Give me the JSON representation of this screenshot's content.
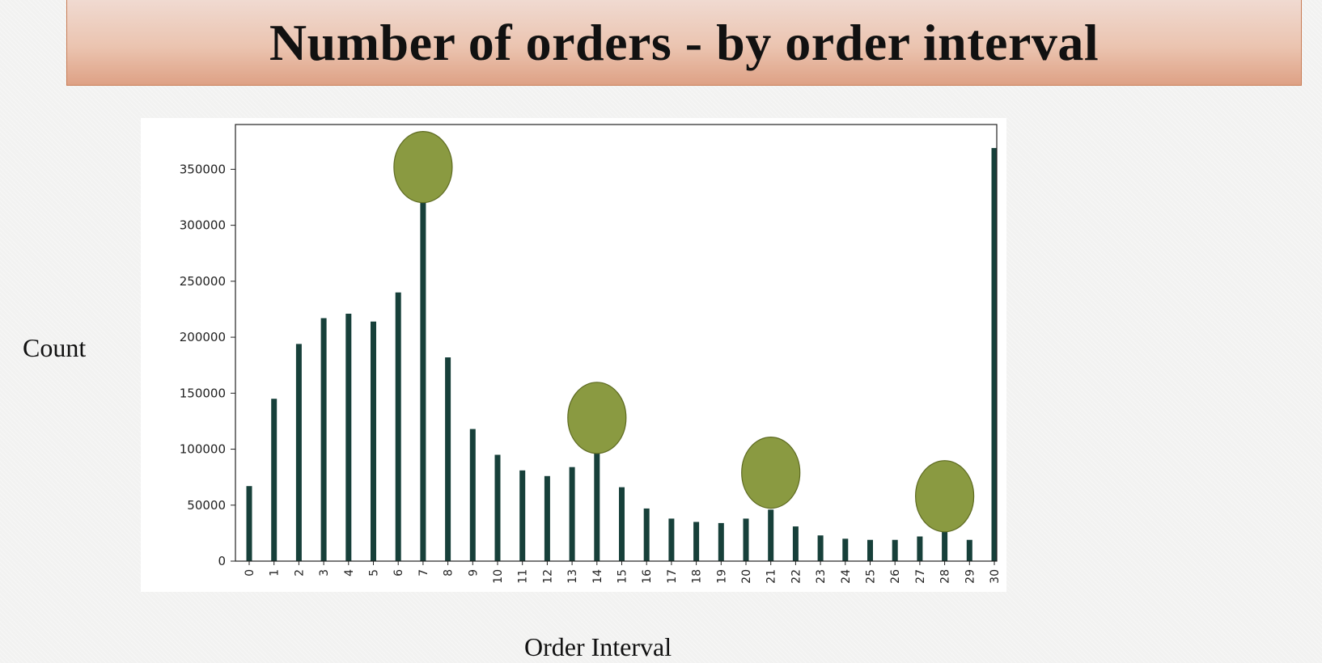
{
  "header": {
    "title": "Number of  orders - by order interval"
  },
  "axes": {
    "ylabel": "Count",
    "xlabel": "Order Interval"
  },
  "colors": {
    "bar": "#17403a",
    "highlight": "#8a9a41",
    "highlight_border": "#5e6b22",
    "banner": "#e6b49c"
  },
  "chart_data": {
    "type": "bar",
    "categories": [
      "0",
      "1",
      "2",
      "3",
      "4",
      "5",
      "6",
      "7",
      "8",
      "9",
      "10",
      "11",
      "12",
      "13",
      "14",
      "15",
      "16",
      "17",
      "18",
      "19",
      "20",
      "21",
      "22",
      "23",
      "24",
      "25",
      "26",
      "27",
      "28",
      "29",
      "30"
    ],
    "values": [
      67000,
      145000,
      194000,
      217000,
      221000,
      214000,
      240000,
      325000,
      182000,
      118000,
      95000,
      81000,
      76000,
      84000,
      97000,
      66000,
      47000,
      38000,
      35000,
      34000,
      38000,
      46000,
      31000,
      23000,
      20000,
      19000,
      19000,
      22000,
      27000,
      19000,
      369000
    ],
    "ylim": [
      0,
      390000
    ],
    "yticks": [
      "0",
      "50000",
      "100000",
      "150000",
      "200000",
      "250000",
      "300000",
      "350000"
    ],
    "ytick_values": [
      0,
      50000,
      100000,
      150000,
      200000,
      250000,
      300000,
      350000
    ],
    "highlighted_categories": [
      "7",
      "14",
      "21",
      "28"
    ],
    "highlight_values": [
      352000,
      128000,
      79000,
      58000
    ],
    "grid": false
  }
}
